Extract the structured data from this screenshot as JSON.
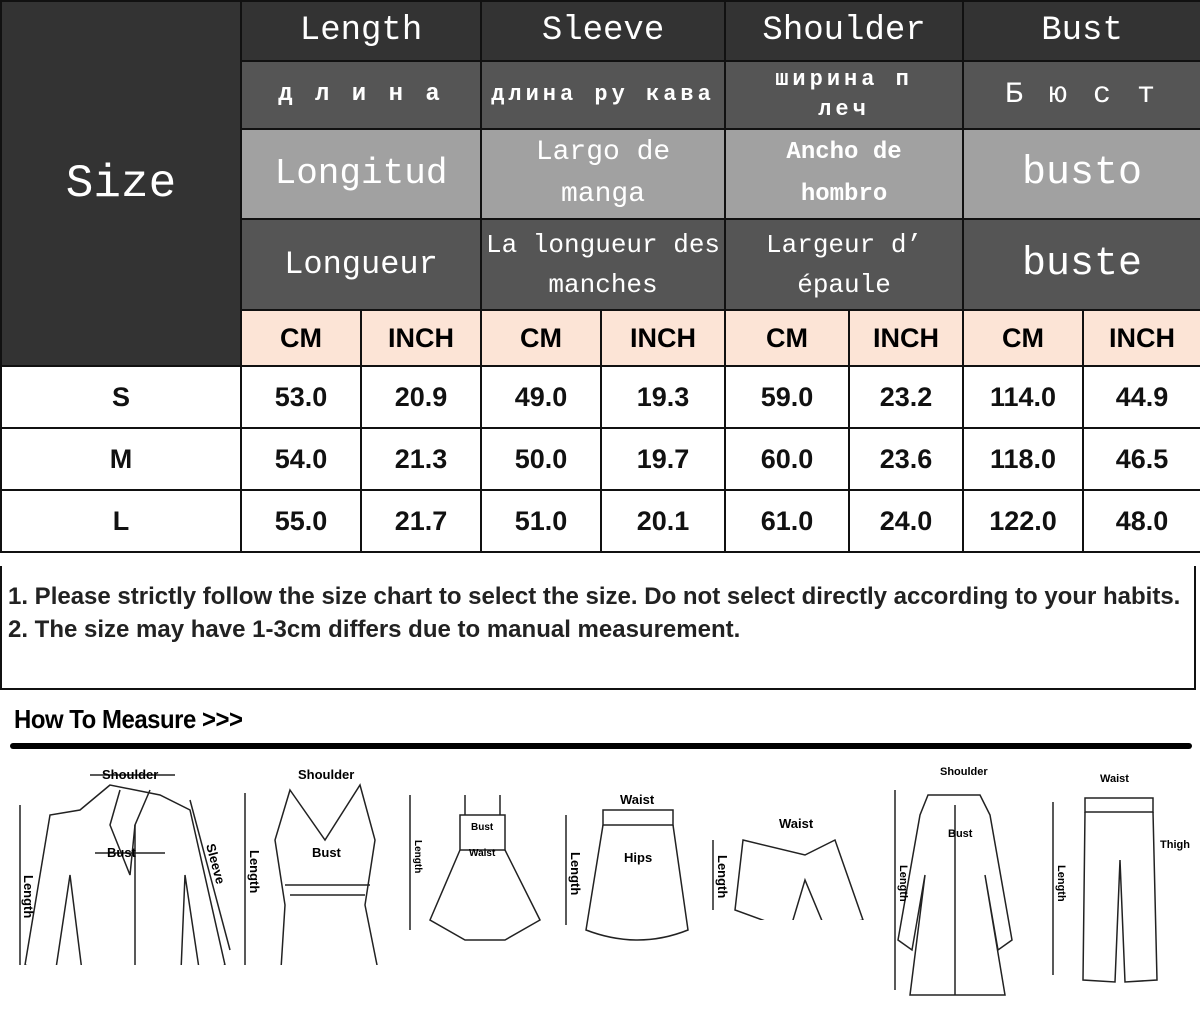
{
  "table": {
    "size_label": "Size",
    "columns": [
      {
        "en": "Length",
        "ru": "д л и н а",
        "es": "Longitud",
        "fr": "Longueur"
      },
      {
        "en": "Sleeve",
        "ru": "длина ру кава",
        "es": "Largo de manga",
        "fr": "La longueur des manches"
      },
      {
        "en": "Shoulder",
        "ru": "ширина п леч",
        "es": "Ancho de hombro",
        "fr": "Largeur d’ épaule"
      },
      {
        "en": "Bust",
        "ru": "Б ю с т",
        "es": "busto",
        "fr": "buste"
      }
    ],
    "unit_cm": "CM",
    "unit_inch": "INCH",
    "rows": [
      {
        "size": "S",
        "values": [
          "53.0",
          "20.9",
          "49.0",
          "19.3",
          "59.0",
          "23.2",
          "114.0",
          "44.9"
        ]
      },
      {
        "size": "M",
        "values": [
          "54.0",
          "21.3",
          "50.0",
          "19.7",
          "60.0",
          "23.6",
          "118.0",
          "46.5"
        ]
      },
      {
        "size": "L",
        "values": [
          "55.0",
          "21.7",
          "51.0",
          "20.1",
          "61.0",
          "24.0",
          "122.0",
          "48.0"
        ]
      }
    ],
    "colors": {
      "header_dark": "#333333",
      "header_mid": "#555555",
      "header_light": "#a1a1a1",
      "unit_row": "#fce4d6"
    }
  },
  "notes": [
    "1. Please strictly follow the size chart to select the size. Do not select directly according to your habits.",
    "2. The size may have 1-3cm differs due to manual measurement."
  ],
  "how_to_measure": {
    "title": "How To Measure >>>",
    "garments": [
      {
        "type": "blouse",
        "labels": {
          "shoulder": "Shoulder",
          "bust": "Bust",
          "length": "Length",
          "sleeve": "Sleeve"
        }
      },
      {
        "type": "vest",
        "labels": {
          "shoulder": "Shoulder",
          "bust": "Bust",
          "length": "Length"
        }
      },
      {
        "type": "dress",
        "labels": {
          "bust": "Bust",
          "waist": "Waist",
          "length": "Length"
        }
      },
      {
        "type": "skirt",
        "labels": {
          "waist": "Waist",
          "hips": "Hips",
          "length": "Length"
        }
      },
      {
        "type": "shorts",
        "labels": {
          "waist": "Waist",
          "length": "Length"
        }
      },
      {
        "type": "coat",
        "labels": {
          "shoulder": "Shoulder",
          "bust": "Bust",
          "length": "Length"
        }
      },
      {
        "type": "pants",
        "labels": {
          "waist": "Waist",
          "thigh": "Thigh",
          "length": "Length"
        }
      }
    ]
  }
}
